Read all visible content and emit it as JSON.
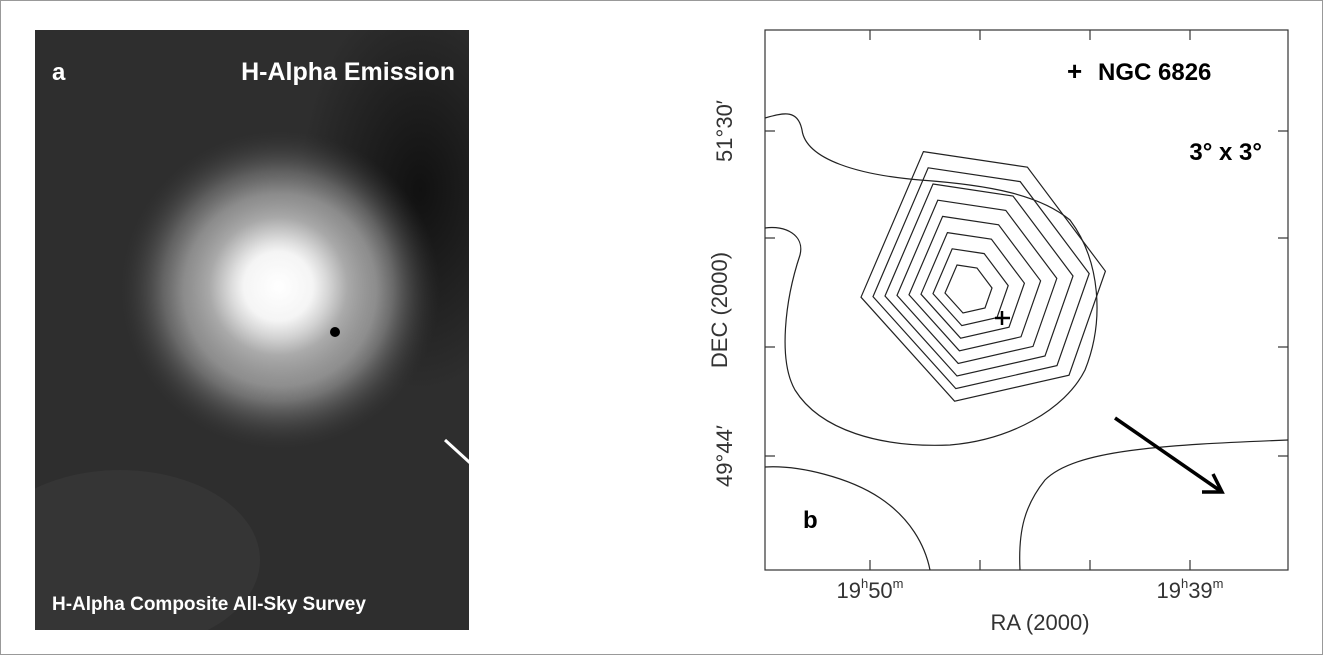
{
  "panel_a": {
    "label": "a",
    "title": "H-Alpha Emission",
    "caption": "H-Alpha Composite All-Sky Survey"
  },
  "panel_b": {
    "label": "b",
    "legend_marker": "+",
    "legend_name": "NGC 6826",
    "field_size": "3° x 3°",
    "y_axis_label": "DEC (2000)",
    "x_axis_label": "RA (2000)",
    "y_tick_labels": [
      "51°30′",
      "49°44′"
    ],
    "x_tick_labels": [
      [
        "19",
        "h",
        "50",
        "m"
      ],
      [
        "19",
        "h",
        "39",
        "m"
      ]
    ]
  }
}
